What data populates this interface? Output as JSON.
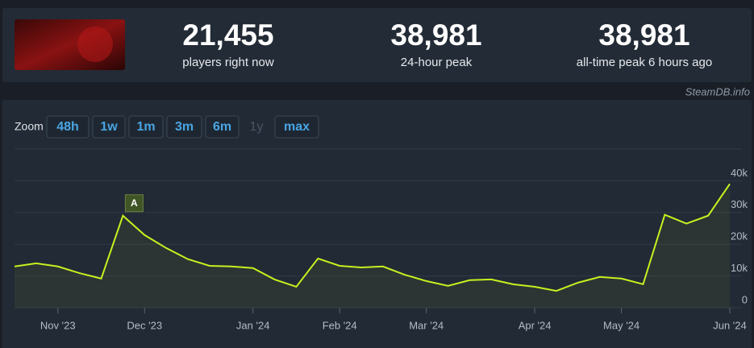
{
  "stats": [
    {
      "value": "21,455",
      "label": "players right now"
    },
    {
      "value": "38,981",
      "label": "24-hour peak"
    },
    {
      "value": "38,981",
      "label": "all-time peak 6 hours ago"
    }
  ],
  "credit": "SteamDB.info",
  "zoom": {
    "label": "Zoom",
    "options": [
      "48h",
      "1w",
      "1m",
      "3m",
      "6m",
      "1y",
      "max"
    ],
    "disabled": "1y"
  },
  "chart_data": {
    "type": "line",
    "categories": [
      null,
      null,
      "Nov '23",
      null,
      null,
      null,
      "Dec '23",
      null,
      null,
      null,
      null,
      "Jan '24",
      null,
      null,
      null,
      "Feb '24",
      null,
      null,
      null,
      "Mar '24",
      null,
      null,
      null,
      null,
      "Apr '24",
      null,
      null,
      null,
      "May '24",
      null,
      null,
      null,
      null,
      "Jun '24"
    ],
    "series": [
      {
        "name": "Players",
        "color": "#c8f01f",
        "values": [
          13000,
          14000,
          13000,
          10900,
          9200,
          29000,
          22900,
          18800,
          15300,
          13200,
          13000,
          12500,
          8900,
          6600,
          15500,
          13200,
          12700,
          13000,
          10400,
          8400,
          6900,
          8700,
          8900,
          7400,
          6600,
          5300,
          7900,
          9700,
          9200,
          7400,
          29300,
          26500,
          29000,
          39000
        ]
      }
    ],
    "annotation": {
      "text": "A"
    },
    "ylim": [
      0,
      50000
    ],
    "yticks": [
      {
        "value": 0,
        "label": "0"
      },
      {
        "value": 10000,
        "label": "10k"
      },
      {
        "value": 20000,
        "label": "20k"
      },
      {
        "value": 30000,
        "label": "30k"
      },
      {
        "value": 40000,
        "label": "40k"
      }
    ],
    "grid": true
  }
}
